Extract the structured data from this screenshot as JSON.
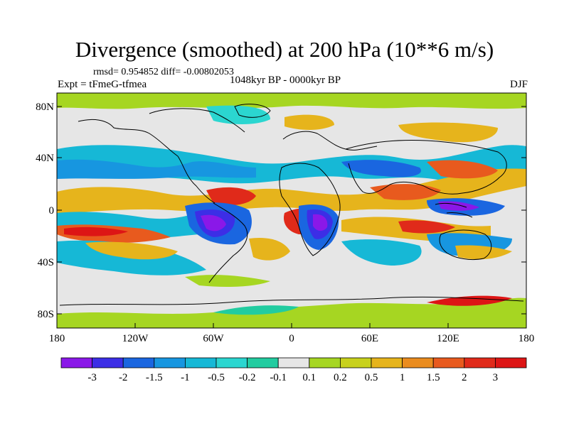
{
  "map": {
    "title": "Divergence (smoothed) at 200 hPa (10**6 m/s)",
    "stats": "rmsd= 0.954852 diff= -0.00802053",
    "experiment": "Expt = tFmeG-tfmea",
    "period": "1048kyr BP - 0000kyr BP",
    "season": "DJF",
    "lat_labels": [
      "80N",
      "40N",
      "0",
      "40S",
      "80S"
    ],
    "lon_labels": [
      "180",
      "120W",
      "60W",
      "0",
      "60E",
      "120E",
      "180"
    ]
  },
  "legend": {
    "labels": [
      "-3",
      "-2",
      "-1.5",
      "-1",
      "-0.5",
      "-0.2",
      "-0.1",
      "0.1",
      "0.2",
      "0.5",
      "1",
      "1.5",
      "2",
      "3"
    ],
    "colors": [
      "#8a18e8",
      "#3c2ee6",
      "#1a66e0",
      "#1796e0",
      "#16b8d6",
      "#2bd6d0",
      "#22cca0",
      "#e6e6e6",
      "#a6d622",
      "#c8d11c",
      "#e6b41c",
      "#ea8c1e",
      "#e85a1e",
      "#e02a1a",
      "#dd1515"
    ]
  }
}
